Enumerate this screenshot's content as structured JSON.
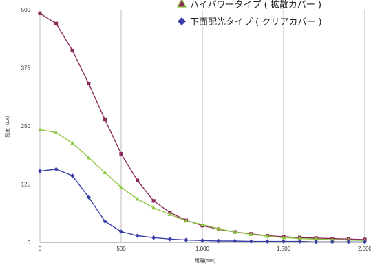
{
  "chart_data": {
    "type": "line",
    "xlabel": "距離(mm)",
    "ylabel": "照度（Lx）",
    "xlim": [
      0,
      2000
    ],
    "ylim": [
      0,
      500
    ],
    "x_ticks": [
      "0",
      "500",
      "1,000",
      "1,500",
      "2,000"
    ],
    "y_ticks": [
      "0",
      "125",
      "250",
      "375",
      "500"
    ],
    "grid": "vertical",
    "legend": "top-right",
    "x": [
      0,
      100,
      200,
      300,
      400,
      500,
      600,
      700,
      800,
      900,
      1000,
      1100,
      1200,
      1300,
      1400,
      1500,
      1600,
      1700,
      1800,
      1900,
      2000
    ],
    "series": [
      {
        "name": "ハイパワータイプ ( 拡散カバー )",
        "color": "#8b2a5c",
        "marker": "square",
        "values": [
          492,
          470,
          412,
          341,
          264,
          190,
          133,
          89,
          64,
          47,
          36,
          28,
          22,
          18,
          14,
          12,
          10,
          9,
          8,
          7,
          6
        ]
      },
      {
        "name": "",
        "color": "#8dc63f",
        "marker": "triangle",
        "values": [
          242,
          236,
          213,
          182,
          150,
          118,
          93,
          74,
          60,
          46,
          38,
          29,
          22,
          17,
          13,
          10,
          8,
          7,
          6,
          5,
          4
        ]
      },
      {
        "name": "下面配光タイプ ( クリアカバー )",
        "color": "#3a3fa8",
        "marker": "diamond",
        "values": [
          153,
          157,
          143,
          97,
          45,
          23,
          14,
          10,
          7,
          5,
          4,
          3,
          3,
          2,
          2,
          2,
          2,
          1,
          1,
          1,
          1
        ]
      }
    ]
  }
}
